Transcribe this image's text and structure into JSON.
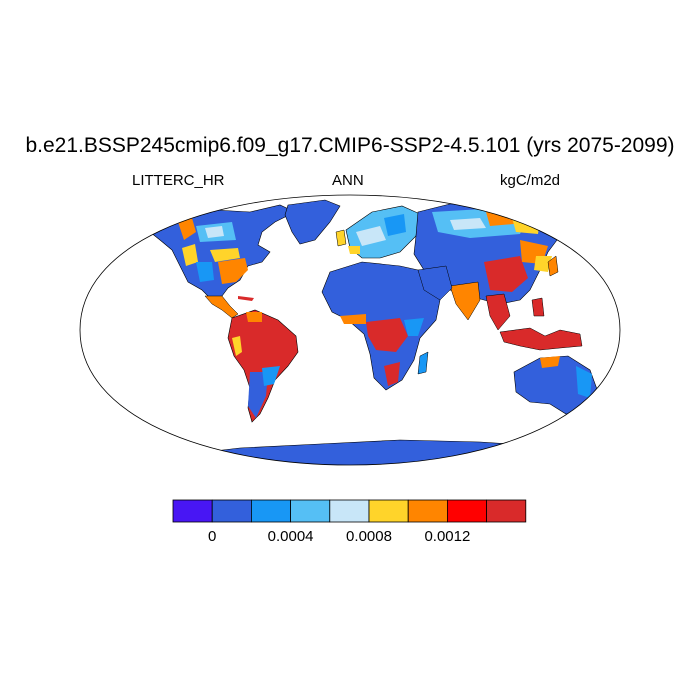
{
  "title": "b.e21.BSSP245cmip6.f09_g17.CMIP6-SSP2-4.5.101 (yrs 2075-2099)",
  "left_label": "LITTERC_HR",
  "center_label": "ANN",
  "right_label": "kgC/m2d",
  "colorbar": {
    "colors": [
      "#4816f4",
      "#3360dc",
      "#1897f5",
      "#55bff5",
      "#c8e6f8",
      "#ffd42a",
      "#ff8500",
      "#ff0000",
      "#d92a2a"
    ],
    "tick_labels": [
      "0",
      "0.0004",
      "0.0008",
      "0.0012"
    ]
  },
  "colors": {
    "ocean": "#ffffff",
    "outline": "#000000"
  }
}
